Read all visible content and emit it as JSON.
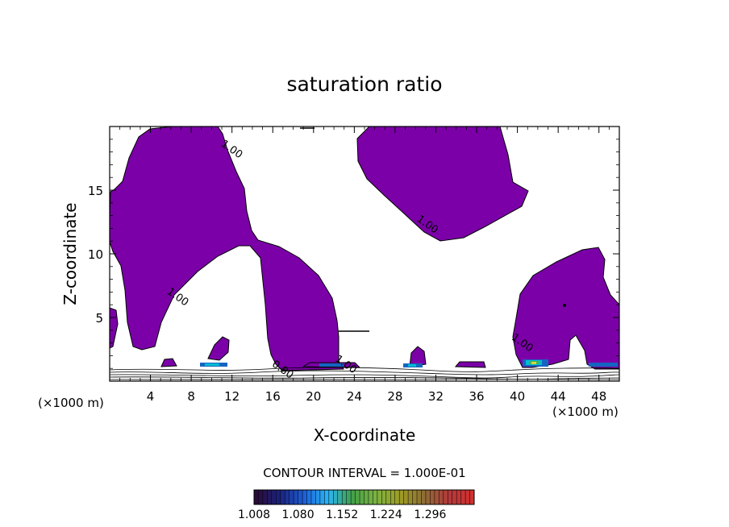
{
  "chart_data": {
    "type": "contour",
    "title": "saturation ratio",
    "xlabel": "X-coordinate",
    "ylabel": "Z-coordinate",
    "x_unit": "(×1000 m)",
    "z_unit": "(×1000 m)",
    "xlim": [
      0,
      50
    ],
    "ylim": [
      0,
      20
    ],
    "x_ticks": [
      4,
      8,
      12,
      16,
      20,
      24,
      28,
      32,
      36,
      40,
      44,
      48
    ],
    "y_ticks": [
      5,
      10,
      15
    ],
    "contour_labels": [
      {
        "text": "1.00",
        "x": 11.8,
        "y": 18.0
      },
      {
        "text": "1.00",
        "x": 31.0,
        "y": 12.1
      },
      {
        "text": "1.00",
        "x": 6.5,
        "y": 6.4
      },
      {
        "text": "1.00",
        "x": 40.3,
        "y": 2.8
      },
      {
        "text": "0.80",
        "x": 16.8,
        "y": 0.7
      },
      {
        "text": "1.00",
        "x": 23.0,
        "y": 1.1
      }
    ],
    "contour_interval_label": "CONTOUR INTERVAL = 1.000E-01",
    "colorbar": {
      "min": 1.008,
      "max": 1.368,
      "tick_labels": [
        "1.008",
        "1.080",
        "1.152",
        "1.224",
        "1.296"
      ],
      "colors": [
        "#2b0a3a",
        "#1a237e",
        "#1e5fd8",
        "#29b6f6",
        "#43a047",
        "#7cb342",
        "#9e9d24",
        "#8d6e35",
        "#b23a3a",
        "#d32f2f"
      ]
    },
    "regions": {
      "fill_color": "#7b00a8",
      "highlight_colors": [
        "#1565c0",
        "#00bcd4",
        "#4caf50",
        "#cddc39"
      ]
    }
  }
}
